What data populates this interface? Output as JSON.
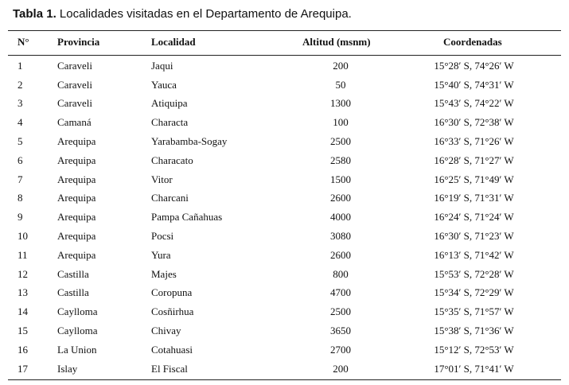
{
  "caption": {
    "label": "Tabla 1.",
    "text": " Localidades visitadas en el Departamento de Arequipa."
  },
  "table": {
    "headers": {
      "no": "N°",
      "provincia": "Provincia",
      "localidad": "Localidad",
      "altitud": "Altitud (msnm)",
      "coordenadas": "Coordenadas"
    },
    "rows": [
      {
        "no": "1",
        "provincia": "Caraveli",
        "localidad": "Jaqui",
        "altitud": "200",
        "coordenadas": "15°28′ S, 74°26′ W"
      },
      {
        "no": "2",
        "provincia": "Caraveli",
        "localidad": "Yauca",
        "altitud": "50",
        "coordenadas": "15°40′ S, 74°31′ W"
      },
      {
        "no": "3",
        "provincia": "Caraveli",
        "localidad": "Atiquipa",
        "altitud": "1300",
        "coordenadas": "15°43′ S, 74°22′ W"
      },
      {
        "no": "4",
        "provincia": "Camaná",
        "localidad": "Characta",
        "altitud": "100",
        "coordenadas": "16°30′ S, 72°38′ W"
      },
      {
        "no": "5",
        "provincia": "Arequipa",
        "localidad": "Yarabamba-Sogay",
        "altitud": "2500",
        "coordenadas": "16°33′ S, 71°26′ W"
      },
      {
        "no": "6",
        "provincia": "Arequipa",
        "localidad": "Characato",
        "altitud": "2580",
        "coordenadas": "16°28′ S, 71°27′ W"
      },
      {
        "no": "7",
        "provincia": "Arequipa",
        "localidad": "Vitor",
        "altitud": "1500",
        "coordenadas": "16°25′ S, 71°49′ W"
      },
      {
        "no": "8",
        "provincia": "Arequipa",
        "localidad": "Charcani",
        "altitud": "2600",
        "coordenadas": "16°19′ S, 71°31′ W"
      },
      {
        "no": "9",
        "provincia": "Arequipa",
        "localidad": "Pampa Cañahuas",
        "altitud": "4000",
        "coordenadas": "16°24′ S, 71°24′ W"
      },
      {
        "no": "10",
        "provincia": "Arequipa",
        "localidad": "Pocsi",
        "altitud": "3080",
        "coordenadas": "16°30′ S, 71°23′ W"
      },
      {
        "no": "11",
        "provincia": "Arequipa",
        "localidad": "Yura",
        "altitud": "2600",
        "coordenadas": "16°13′ S, 71°42′ W"
      },
      {
        "no": "12",
        "provincia": "Castilla",
        "localidad": "Majes",
        "altitud": "800",
        "coordenadas": "15°53′ S, 72°28′ W"
      },
      {
        "no": "13",
        "provincia": "Castilla",
        "localidad": "Coropuna",
        "altitud": "4700",
        "coordenadas": "15°34′ S, 72°29′ W"
      },
      {
        "no": "14",
        "provincia": "Caylloma",
        "localidad": "Cosñirhua",
        "altitud": "2500",
        "coordenadas": "15°35′ S, 71°57′ W"
      },
      {
        "no": "15",
        "provincia": "Caylloma",
        "localidad": "Chivay",
        "altitud": "3650",
        "coordenadas": "15°38′ S, 71°36′ W"
      },
      {
        "no": "16",
        "provincia": "La Union",
        "localidad": "Cotahuasi",
        "altitud": "2700",
        "coordenadas": "15°12′ S, 72°53′ W"
      },
      {
        "no": "17",
        "provincia": "Islay",
        "localidad": "El Fiscal",
        "altitud": "200",
        "coordenadas": "17°01′ S, 71°41′ W"
      }
    ]
  }
}
